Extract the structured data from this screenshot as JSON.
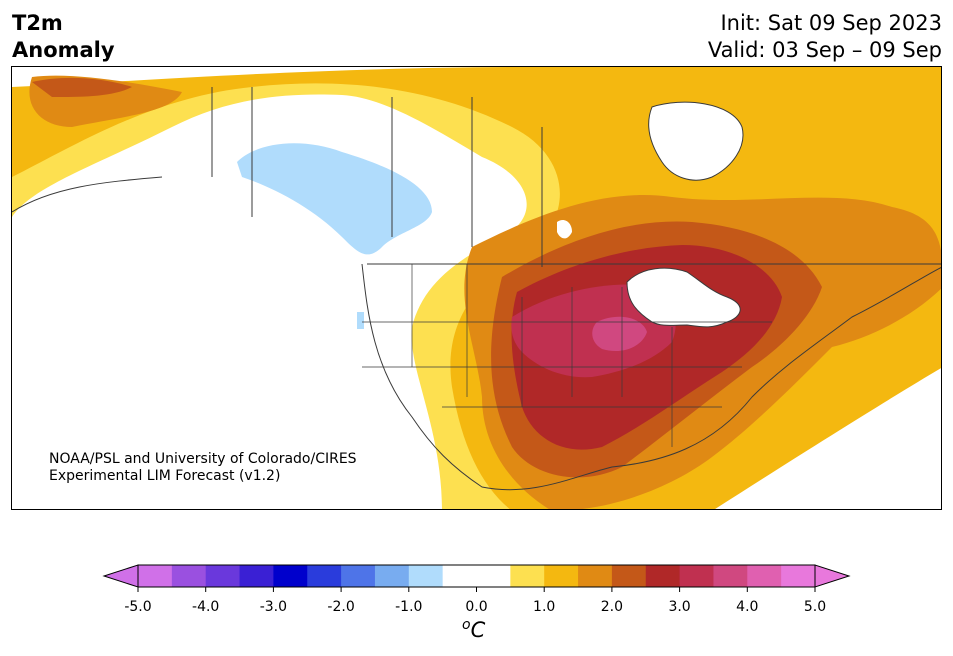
{
  "title": {
    "left_line1": "T2m",
    "left_line2": "Anomaly",
    "right_line1": "Init: Sat 09 Sep 2023",
    "right_line2": "Valid: 03 Sep – 09 Sep"
  },
  "credit": {
    "line1": "NOAA/PSL and University of Colorado/CIRES",
    "line2": "Experimental LIM Forecast (v1.2)"
  },
  "colorbar": {
    "ticks": [
      "-5.0",
      "-4.0",
      "-3.0",
      "-2.0",
      "-1.0",
      "0.0",
      "1.0",
      "2.0",
      "3.0",
      "4.0",
      "5.0"
    ],
    "units_base": "C",
    "units_sup": "o",
    "colors": [
      "#d070e8",
      "#9a50e0",
      "#6a38dc",
      "#3a20d4",
      "#0000cc",
      "#2a3cdc",
      "#4e74e8",
      "#78acf0",
      "#b0dcfc",
      "#ffffff",
      "#ffffff",
      "#fde050",
      "#f4b810",
      "#e08a14",
      "#c45818",
      "#b02828",
      "#c03050",
      "#d04880",
      "#e060b0",
      "#e878dc"
    ]
  },
  "map": {
    "colors": {
      "land_outline": "#3a3a3a",
      "light_blue": "#b0dcfc",
      "yellow": "#fde050",
      "gold": "#f4b810",
      "orange": "#e08a14",
      "dark_orange": "#c45818",
      "red": "#b02828",
      "crimson": "#c03050",
      "rose": "#d04880",
      "pink": "#e060b0"
    }
  }
}
